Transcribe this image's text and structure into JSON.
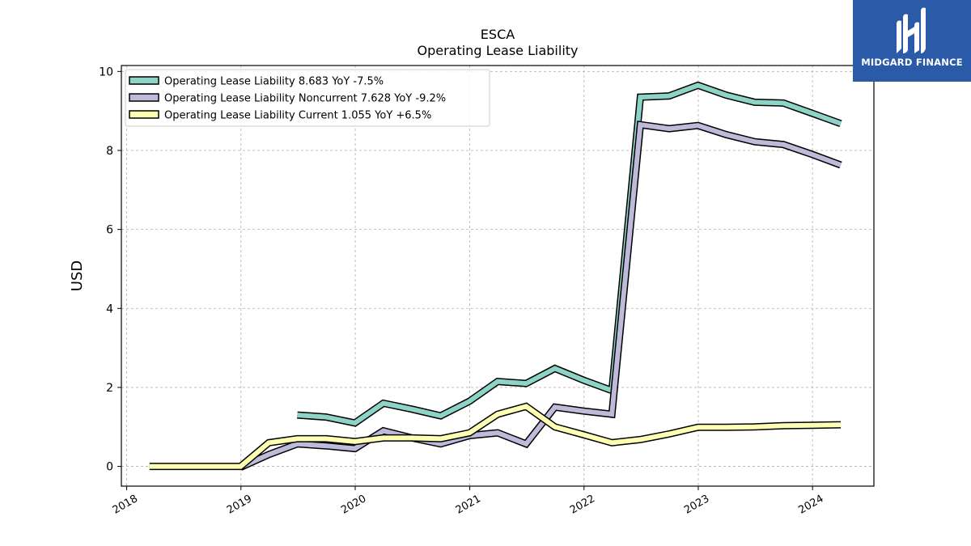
{
  "chart_data": {
    "type": "line",
    "title": "ESCA",
    "subtitle": "Operating Lease Liability",
    "xlabel": "",
    "ylabel": "USD",
    "xlim": [
      "2017-12-15",
      "2024-07-15"
    ],
    "ylim": [
      -0.5,
      10.15
    ],
    "yticks": [
      0,
      2,
      4,
      6,
      8,
      10
    ],
    "xticks": [
      "2018",
      "2019",
      "2020",
      "2021",
      "2022",
      "2023",
      "2024"
    ],
    "grid": true,
    "legend_position": "top-left",
    "series": [
      {
        "name": "Operating Lease Liability",
        "legend": "Operating Lease Liability  8.683 YoY -7.5%",
        "color": "#8dd3c7",
        "x": [
          "2019-06-30",
          "2019-09-30",
          "2019-12-31",
          "2020-03-31",
          "2020-06-30",
          "2020-09-30",
          "2020-12-31",
          "2021-03-31",
          "2021-06-30",
          "2021-09-30",
          "2021-12-31",
          "2022-03-31",
          "2022-06-30",
          "2022-09-30",
          "2022-12-31",
          "2023-03-31",
          "2023-06-30",
          "2023-09-30",
          "2023-12-31",
          "2024-03-31"
        ],
        "values": [
          1.3,
          1.25,
          1.1,
          1.6,
          1.45,
          1.28,
          1.65,
          2.15,
          2.1,
          2.48,
          2.18,
          1.92,
          9.35,
          9.38,
          9.65,
          9.4,
          9.22,
          9.2,
          8.94,
          8.68
        ]
      },
      {
        "name": "Operating Lease Liability Noncurrent",
        "legend": "Operating Lease Liability Noncurrent  7.628 YoY -9.2%",
        "color": "#bebada",
        "x": [
          "2018-12-31",
          "2019-03-31",
          "2019-06-30",
          "2019-09-30",
          "2019-12-31",
          "2020-03-31",
          "2020-06-30",
          "2020-09-30",
          "2020-12-31",
          "2021-03-31",
          "2021-06-30",
          "2021-09-30",
          "2021-12-31",
          "2022-03-31",
          "2022-06-30",
          "2022-09-30",
          "2022-12-31",
          "2023-03-31",
          "2023-06-30",
          "2023-09-30",
          "2023-12-31",
          "2024-03-31"
        ],
        "values": [
          -0.02,
          0.3,
          0.57,
          0.52,
          0.45,
          0.9,
          0.72,
          0.57,
          0.78,
          0.85,
          0.57,
          1.5,
          1.4,
          1.32,
          8.65,
          8.55,
          8.63,
          8.4,
          8.22,
          8.15,
          7.9,
          7.63
        ]
      },
      {
        "name": "Operating Lease Liability Current",
        "legend": "Operating Lease Liability Current  1.055 YoY +6.5%",
        "color": "#ffffb3",
        "x": [
          "2018-03-15",
          "2018-12-31",
          "2019-03-31",
          "2019-06-30",
          "2019-09-30",
          "2019-12-31",
          "2020-03-31",
          "2020-06-30",
          "2020-09-30",
          "2020-12-31",
          "2021-03-31",
          "2021-06-30",
          "2021-09-30",
          "2021-12-31",
          "2022-03-31",
          "2022-06-30",
          "2022-09-30",
          "2022-12-31",
          "2023-03-31",
          "2023-06-30",
          "2023-09-30",
          "2023-12-31",
          "2024-03-31"
        ],
        "values": [
          0.0,
          0.0,
          0.6,
          0.7,
          0.7,
          0.63,
          0.72,
          0.72,
          0.7,
          0.85,
          1.32,
          1.52,
          1.0,
          0.8,
          0.6,
          0.68,
          0.82,
          0.99,
          0.99,
          1.0,
          1.03,
          1.04,
          1.055
        ]
      }
    ]
  },
  "logo": {
    "text": "MIDGARD FINANCE",
    "background": "#2b5aa8"
  }
}
